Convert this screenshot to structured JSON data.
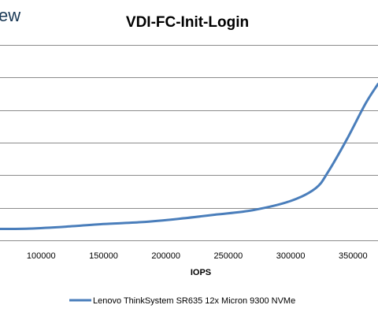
{
  "watermark": {
    "text": "ew"
  },
  "colors": {
    "series": "#4a7ebb",
    "grid": "#8c8c8c",
    "watermark": "#1b3a57"
  },
  "chart_data": {
    "type": "line",
    "title": "VDI-FC-Init-Login",
    "xlabel": "IOPS",
    "ylabel": "",
    "x_ticks": [
      100000,
      150000,
      200000,
      250000,
      300000,
      350000
    ],
    "x_tick_labels": [
      "100000",
      "150000",
      "200000",
      "250000",
      "300000",
      "350000"
    ],
    "xlim": [
      67000,
      370000
    ],
    "grid": "horizontal",
    "legend": "bottom",
    "series": [
      {
        "name": "Lenovo ThinkSystem SR635 12x Micron 9300 NVMe",
        "color": "#4a7ebb",
        "x": [
          67000,
          90000,
          120000,
          150000,
          180000,
          210000,
          240000,
          270000,
          300000,
          320000,
          330000,
          345000,
          360000,
          370000
        ],
        "y": [
          0.35,
          0.36,
          0.42,
          0.5,
          0.56,
          0.66,
          0.79,
          0.93,
          1.21,
          1.6,
          2.1,
          3.1,
          4.2,
          4.8
        ]
      }
    ]
  }
}
